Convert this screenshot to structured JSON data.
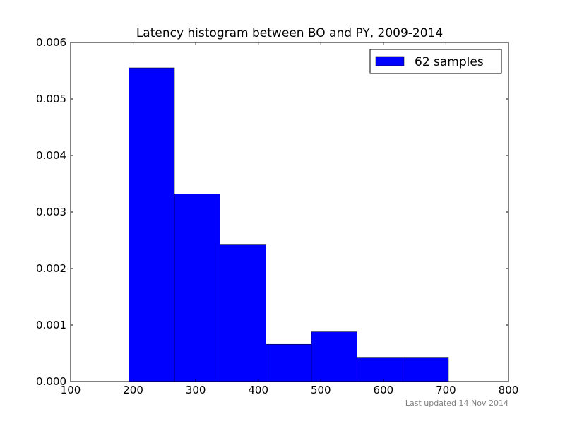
{
  "chart_data": {
    "type": "bar",
    "title": "Latency histogram between BO and PY, 2009-2014",
    "xlabel": "",
    "ylabel": "",
    "xlim": [
      100,
      800
    ],
    "ylim": [
      0,
      0.006
    ],
    "x_ticks": [
      "100",
      "200",
      "300",
      "400",
      "500",
      "600",
      "700",
      "800"
    ],
    "y_ticks": [
      "0.000",
      "0.001",
      "0.002",
      "0.003",
      "0.004",
      "0.005",
      "0.006"
    ],
    "bins": [
      {
        "start": 193,
        "end": 266,
        "value": 0.00555
      },
      {
        "start": 266,
        "end": 339,
        "value": 0.00332
      },
      {
        "start": 339,
        "end": 412,
        "value": 0.00243
      },
      {
        "start": 412,
        "end": 485,
        "value": 0.00066
      },
      {
        "start": 485,
        "end": 558,
        "value": 0.00088
      },
      {
        "start": 558,
        "end": 631,
        "value": 0.00043
      },
      {
        "start": 631,
        "end": 704,
        "value": 0.00043
      }
    ],
    "series": [
      {
        "name": "62 samples",
        "color": "#0000ff"
      }
    ],
    "legend_position": "top-right",
    "grid": false
  },
  "footer": "Last updated 14 Nov 2014"
}
